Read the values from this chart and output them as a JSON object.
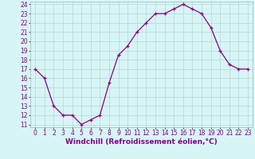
{
  "hours": [
    0,
    1,
    2,
    3,
    4,
    5,
    6,
    7,
    8,
    9,
    10,
    11,
    12,
    13,
    14,
    15,
    16,
    17,
    18,
    19,
    20,
    21,
    22,
    23
  ],
  "values": [
    17,
    16,
    13,
    12,
    12,
    11,
    11.5,
    12,
    15.5,
    18.5,
    19.5,
    21,
    22,
    23,
    23,
    23.5,
    24,
    23.5,
    23,
    21.5,
    19,
    17.5,
    17,
    17
  ],
  "line_color": "#880088",
  "bg_color": "#d8f5f5",
  "grid_color": "#b0d8d8",
  "xlabel": "Windchill (Refroidissement éolien,°C)",
  "xlabel_color": "#880088",
  "ylim_min": 11,
  "ylim_max": 24,
  "yticks": [
    11,
    12,
    13,
    14,
    15,
    16,
    17,
    18,
    19,
    20,
    21,
    22,
    23,
    24
  ],
  "xticks": [
    0,
    1,
    2,
    3,
    4,
    5,
    6,
    7,
    8,
    9,
    10,
    11,
    12,
    13,
    14,
    15,
    16,
    17,
    18,
    19,
    20,
    21,
    22,
    23
  ],
  "tick_label_size": 5.5,
  "xlabel_size": 6.5,
  "spine_color": "#99bbbb"
}
